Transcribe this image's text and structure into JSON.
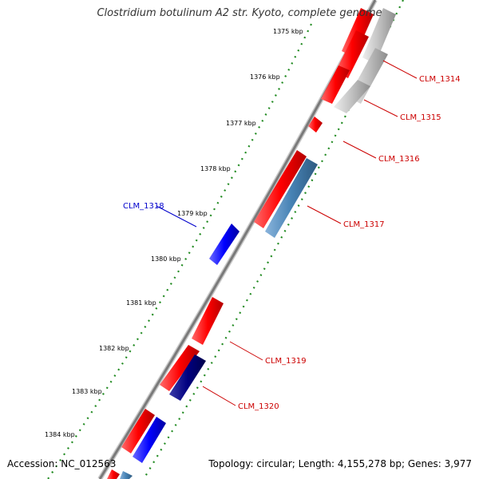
{
  "title": "Clostridium botulinum A2 str. Kyoto, complete genome",
  "accession_text": "Accession: NC_012563",
  "summary_text": "Topology: circular; Length: 4,155,278 bp; Genes: 3,977",
  "colors": {
    "forward_cds": "#ff0000",
    "reverse_cds": "#ff0000",
    "forward_gene": "#0000ff",
    "reverse_gene_light": "#4682b4",
    "reverse_gene_dark": "#000080",
    "pseudo": "#c0c0c0",
    "backbone": "#808080",
    "tick_dots": "#228b22",
    "label_red": "#cc0000",
    "label_blue": "#0000cc"
  },
  "ticks": [
    "1375 kbp",
    "1376 kbp",
    "1377 kbp",
    "1378 kbp",
    "1379 kbp",
    "1380 kbp",
    "1381 kbp",
    "1382 kbp",
    "1383 kbp",
    "1384 kbp"
  ],
  "gene_labels": [
    {
      "id": "clm1314",
      "text": "CLM_1314",
      "color": "red"
    },
    {
      "id": "clm1315",
      "text": "CLM_1315",
      "color": "red"
    },
    {
      "id": "clm1316",
      "text": "CLM_1316",
      "color": "red"
    },
    {
      "id": "clm1317",
      "text": "CLM_1317",
      "color": "red"
    },
    {
      "id": "clm1318",
      "text": "CLM_1318",
      "color": "blue"
    },
    {
      "id": "clm1319",
      "text": "CLM_1319",
      "color": "red"
    },
    {
      "id": "clm1320",
      "text": "CLM_1320",
      "color": "red"
    }
  ]
}
